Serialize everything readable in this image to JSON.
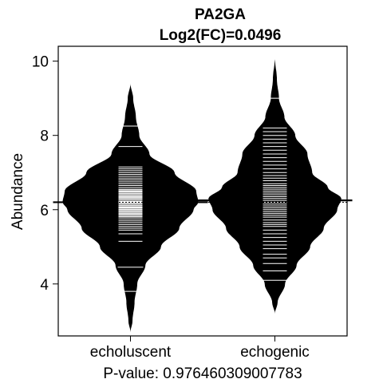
{
  "chart_data": {
    "type": "beanplot",
    "title": "PA2GA",
    "subtitle": "Log2(FC)=0.0496",
    "xlabel": "P-value: 0.976460309007783",
    "ylabel": "Abundance",
    "categories": [
      "echoluscent",
      "echogenic"
    ],
    "ylim": [
      2.6,
      10.4
    ],
    "yticks": [
      4,
      6,
      8,
      10
    ],
    "overall_mean": 6.2,
    "grid": false,
    "legend": "none",
    "colors": {
      "bean_fill": "#000000",
      "bean_lines": "#ffffff",
      "frame": "#000000"
    },
    "series": [
      {
        "name": "echoluscent",
        "mean": 6.2,
        "range": [
          2.7,
          9.4
        ],
        "density_profile": [
          [
            2.7,
            0.0
          ],
          [
            3.0,
            0.03
          ],
          [
            3.5,
            0.06
          ],
          [
            4.0,
            0.1
          ],
          [
            4.5,
            0.22
          ],
          [
            5.0,
            0.45
          ],
          [
            5.5,
            0.72
          ],
          [
            6.0,
            0.93
          ],
          [
            6.2,
            1.0
          ],
          [
            6.5,
            0.97
          ],
          [
            7.0,
            0.65
          ],
          [
            7.5,
            0.28
          ],
          [
            8.0,
            0.13
          ],
          [
            8.5,
            0.08
          ],
          [
            9.0,
            0.04
          ],
          [
            9.4,
            0.0
          ]
        ],
        "long_lines": [
          8.25,
          4.45,
          3.8
        ],
        "points": [
          5.15,
          5.35,
          5.45,
          5.5,
          5.55,
          5.6,
          5.65,
          5.7,
          5.75,
          5.8,
          5.82,
          5.85,
          5.88,
          5.9,
          5.93,
          5.95,
          5.98,
          6.0,
          6.02,
          6.05,
          6.07,
          6.1,
          6.12,
          6.15,
          6.18,
          6.2,
          6.22,
          6.25,
          6.28,
          6.3,
          6.33,
          6.35,
          6.38,
          6.4,
          6.43,
          6.45,
          6.48,
          6.5,
          6.53,
          6.55,
          6.6,
          6.65,
          6.7,
          6.75,
          6.8,
          6.85,
          6.9,
          6.95,
          7.0,
          7.05,
          7.1,
          7.15,
          7.7,
          8.25,
          4.45,
          3.8
        ]
      },
      {
        "name": "echogenic",
        "mean": 6.25,
        "range": [
          3.2,
          10.1
        ],
        "density_profile": [
          [
            3.2,
            0.0
          ],
          [
            3.5,
            0.04
          ],
          [
            4.0,
            0.15
          ],
          [
            4.5,
            0.32
          ],
          [
            5.0,
            0.52
          ],
          [
            5.5,
            0.72
          ],
          [
            6.0,
            0.92
          ],
          [
            6.3,
            0.98
          ],
          [
            6.6,
            0.78
          ],
          [
            7.0,
            0.55
          ],
          [
            7.5,
            0.48
          ],
          [
            8.0,
            0.3
          ],
          [
            8.5,
            0.14
          ],
          [
            9.0,
            0.06
          ],
          [
            9.5,
            0.03
          ],
          [
            10.1,
            0.0
          ]
        ],
        "long_lines": [
          9.0
        ],
        "points": [
          4.1,
          4.35,
          4.55,
          4.7,
          4.8,
          4.95,
          5.05,
          5.15,
          5.25,
          5.35,
          5.45,
          5.55,
          5.6,
          5.65,
          5.72,
          5.8,
          5.85,
          5.9,
          5.95,
          6.0,
          6.05,
          6.1,
          6.15,
          6.2,
          6.25,
          6.3,
          6.35,
          6.4,
          6.45,
          6.5,
          6.55,
          6.6,
          6.65,
          6.7,
          6.78,
          6.85,
          6.92,
          7.0,
          7.1,
          7.2,
          7.3,
          7.4,
          7.5,
          7.6,
          7.7,
          7.8,
          7.9,
          8.0,
          8.1,
          8.2,
          9.0
        ]
      }
    ]
  }
}
